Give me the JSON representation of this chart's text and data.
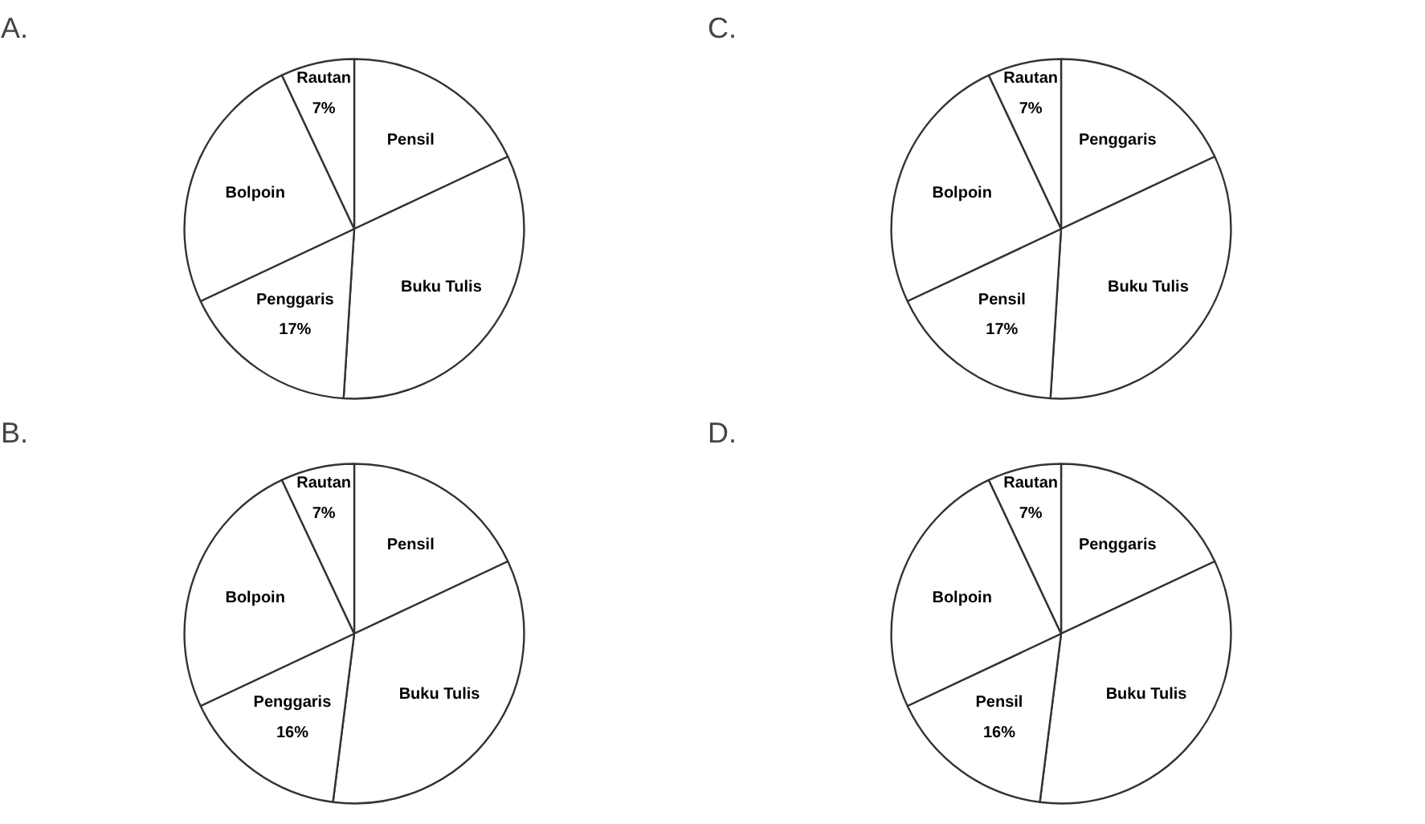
{
  "chart_data": [
    {
      "type": "pie",
      "title": "A.",
      "categories": [
        "Pensil",
        "Buku Tulis",
        "Penggaris",
        "Bolpoin",
        "Rautan"
      ],
      "values": [
        18,
        33,
        17,
        25,
        7
      ],
      "colors": [
        "#ffffff",
        "#ffffff",
        "#ffffff",
        "#ffffff",
        "#ffffff"
      ],
      "value_labels": [
        null,
        null,
        "17%",
        null,
        "7%"
      ]
    },
    {
      "type": "pie",
      "title": "C.",
      "categories": [
        "Penggaris",
        "Buku Tulis",
        "Pensil",
        "Bolpoin",
        "Rautan"
      ],
      "values": [
        18,
        33,
        17,
        25,
        7
      ],
      "colors": [
        "#ffffff",
        "#ffffff",
        "#ffffff",
        "#ffffff",
        "#ffffff"
      ],
      "value_labels": [
        null,
        null,
        "17%",
        null,
        "7%"
      ]
    },
    {
      "type": "pie",
      "title": "B.",
      "categories": [
        "Pensil",
        "Buku Tulis",
        "Penggaris",
        "Bolpoin",
        "Rautan"
      ],
      "values": [
        18,
        34,
        16,
        25,
        7
      ],
      "colors": [
        "#ffffff",
        "#ffffff",
        "#ffffff",
        "#ffffff",
        "#ffffff"
      ],
      "value_labels": [
        null,
        null,
        "16%",
        null,
        "7%"
      ]
    },
    {
      "type": "pie",
      "title": "D.",
      "categories": [
        "Penggaris",
        "Buku Tulis",
        "Pensil",
        "Bolpoin",
        "Rautan"
      ],
      "values": [
        18,
        34,
        16,
        25,
        7
      ],
      "colors": [
        "#ffffff",
        "#ffffff",
        "#ffffff",
        "#ffffff",
        "#ffffff"
      ],
      "value_labels": [
        null,
        null,
        "16%",
        null,
        "7%"
      ]
    }
  ]
}
